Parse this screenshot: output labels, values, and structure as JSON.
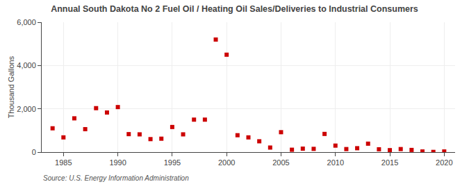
{
  "chart_data": {
    "type": "scatter",
    "title": "Annual South Dakota No 2 Fuel Oil / Heating Oil Sales/Deliveries to Industrial Consumers",
    "ylabel": "Thousand Gallons",
    "annotations": [
      "Source: U.S. Energy Information Administration"
    ],
    "x": [
      1984,
      1985,
      1986,
      1987,
      1988,
      1989,
      1990,
      1991,
      1992,
      1993,
      1994,
      1995,
      1996,
      1997,
      1998,
      1999,
      2000,
      2001,
      2002,
      2003,
      2004,
      2005,
      2006,
      2007,
      2008,
      2009,
      2010,
      2011,
      2012,
      2013,
      2014,
      2015,
      2016,
      2017,
      2018,
      2019,
      2020
    ],
    "values": [
      1100,
      680,
      1560,
      1060,
      2030,
      1830,
      2080,
      830,
      820,
      600,
      620,
      1160,
      820,
      1500,
      1500,
      5200,
      4500,
      780,
      680,
      500,
      210,
      920,
      110,
      160,
      150,
      840,
      300,
      140,
      180,
      390,
      130,
      90,
      140,
      100,
      30,
      10,
      30
    ],
    "color": "#cc0000",
    "marker": "square",
    "xlim": [
      1983,
      2021
    ],
    "xticks": [
      1985,
      1990,
      1995,
      2000,
      2005,
      2010,
      2015,
      2020
    ],
    "ylim": [
      0,
      6000
    ],
    "yticks": [
      0,
      {
        "value": 2000,
        "label": "2,000"
      },
      {
        "value": 4000,
        "label": "4,000"
      },
      {
        "value": 6000,
        "label": "6,000"
      }
    ],
    "grid": true
  }
}
